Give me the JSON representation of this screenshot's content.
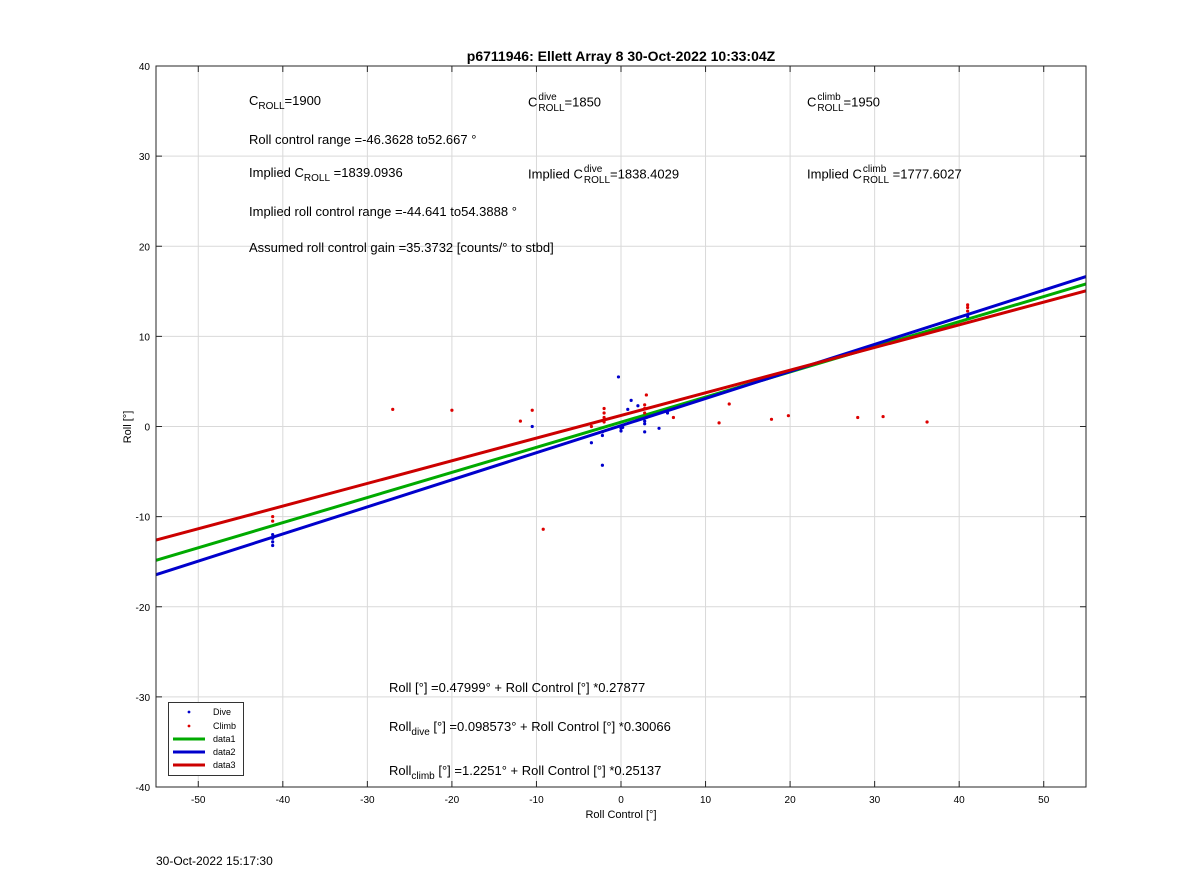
{
  "footer_timestamp": "30-Oct-2022 15:17:30",
  "colors": {
    "dive": "#0000cc",
    "climb": "#dd0000",
    "data1": "#00aa00",
    "data2": "#0000cc",
    "data3": "#cc0000",
    "grid": "#d9d9d9"
  },
  "annotations": {
    "c_roll_base": "C",
    "c_roll_sub": "ROLL",
    "c_roll_val": "=1900",
    "c_dive_base": "C",
    "c_dive_sup": "dive",
    "c_dive_sub": "ROLL",
    "c_dive_val": "=1850",
    "c_climb_base": "C",
    "c_climb_sup": "climb",
    "c_climb_sub": "ROLL",
    "c_climb_val": "=1950",
    "roll_range": "Roll control range =-46.3628 to52.667 °",
    "implied_c_prefix": "Implied C",
    "implied_c_sub": "ROLL",
    "implied_c_val": " =1839.0936",
    "implied_dive_prefix": "Implied C",
    "implied_dive_sup": "dive",
    "implied_dive_sub": "ROLL",
    "implied_dive_val": "=1838.4029",
    "implied_climb_prefix": "Implied C",
    "implied_climb_sup": "climb",
    "implied_climb_sub": "ROLL",
    "implied_climb_val": " =1777.6027",
    "implied_range": "Implied roll control range =-44.641 to54.3888 °",
    "gain": "Assumed roll control gain =35.3732 [counts/° to stbd]",
    "eq_all": "Roll [°] =0.47999° + Roll Control [°] *0.27877",
    "eq_dive_base": "Roll",
    "eq_dive_sub": "dive",
    "eq_dive_rest": " [°] =0.098573° + Roll Control [°] *0.30066",
    "eq_climb_base": "Roll",
    "eq_climb_sub": "climb",
    "eq_climb_rest": " [°] =1.2251° + Roll Control [°] *0.25137"
  },
  "chart_data": {
    "type": "scatter",
    "title": "p6711946: Ellett Array 8 30-Oct-2022 10:33:04Z",
    "xlabel": "Roll Control [°]",
    "ylabel": "Roll [°]",
    "xlim": [
      -55,
      55
    ],
    "ylim": [
      -40,
      40
    ],
    "xticks": [
      -50,
      -40,
      -30,
      -20,
      -10,
      0,
      10,
      20,
      30,
      40,
      50
    ],
    "yticks": [
      -40,
      -30,
      -20,
      -10,
      0,
      10,
      20,
      30,
      40
    ],
    "grid": true,
    "legend_location": "bottom-left",
    "series": [
      {
        "name": "Dive",
        "kind": "points",
        "color": "#0000cc",
        "points": [
          [
            -41.2,
            -12.0
          ],
          [
            -41.2,
            -12.4
          ],
          [
            -41.2,
            -12.8
          ],
          [
            -41.2,
            -13.2
          ],
          [
            -10.5,
            0.0
          ],
          [
            -3.5,
            -1.8
          ],
          [
            -2.2,
            -0.6
          ],
          [
            -2.2,
            -1.0
          ],
          [
            -2.2,
            -4.3
          ],
          [
            -0.3,
            5.5
          ],
          [
            0.0,
            -0.2
          ],
          [
            0.0,
            -0.5
          ],
          [
            0.2,
            -0.1
          ],
          [
            0.8,
            1.9
          ],
          [
            1.2,
            2.9
          ],
          [
            2.0,
            2.3
          ],
          [
            2.8,
            0.3
          ],
          [
            2.8,
            0.6
          ],
          [
            2.8,
            -0.6
          ],
          [
            3.0,
            1.0
          ],
          [
            4.5,
            -0.2
          ],
          [
            5.5,
            1.5
          ],
          [
            41.0,
            12.2
          ]
        ]
      },
      {
        "name": "Climb",
        "kind": "points",
        "color": "#dd0000",
        "points": [
          [
            -41.2,
            -10.0
          ],
          [
            -41.2,
            -10.5
          ],
          [
            -27.0,
            1.9
          ],
          [
            -20.0,
            1.8
          ],
          [
            -11.9,
            0.6
          ],
          [
            -10.5,
            1.8
          ],
          [
            -9.2,
            -11.4
          ],
          [
            -3.5,
            0.0
          ],
          [
            -2.0,
            0.5
          ],
          [
            -2.0,
            1.0
          ],
          [
            -2.0,
            1.5
          ],
          [
            -2.0,
            2.0
          ],
          [
            2.8,
            1.5
          ],
          [
            2.8,
            2.0
          ],
          [
            2.8,
            2.4
          ],
          [
            3.0,
            3.5
          ],
          [
            6.2,
            1.0
          ],
          [
            11.6,
            0.4
          ],
          [
            12.8,
            2.5
          ],
          [
            17.8,
            0.8
          ],
          [
            19.8,
            1.2
          ],
          [
            28.0,
            1.0
          ],
          [
            31.0,
            1.1
          ],
          [
            36.2,
            0.5
          ],
          [
            41.0,
            12.8
          ],
          [
            41.0,
            13.2
          ],
          [
            41.0,
            13.5
          ]
        ]
      },
      {
        "name": "data1",
        "kind": "line",
        "color": "#00aa00",
        "intercept": 0.47999,
        "slope": 0.27877,
        "x": [
          -55,
          55
        ]
      },
      {
        "name": "data2",
        "kind": "line",
        "color": "#0000cc",
        "intercept": 0.098573,
        "slope": 0.30066,
        "x": [
          -55,
          55
        ]
      },
      {
        "name": "data3",
        "kind": "line",
        "color": "#cc0000",
        "intercept": 1.2251,
        "slope": 0.25137,
        "x": [
          -55,
          55
        ]
      }
    ]
  }
}
